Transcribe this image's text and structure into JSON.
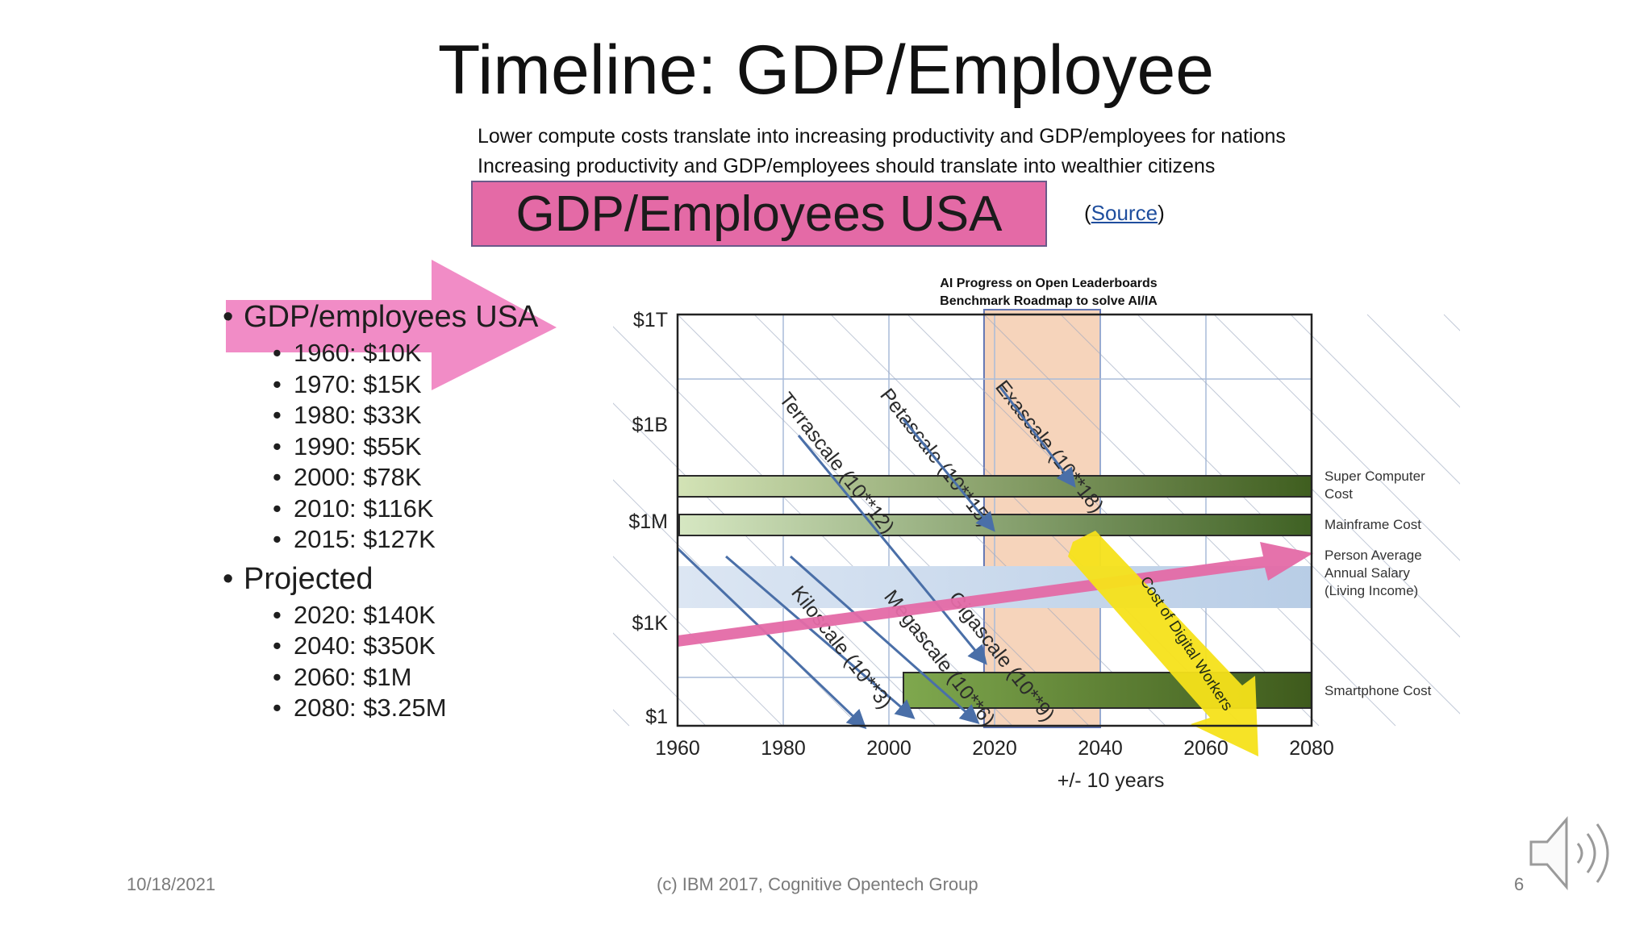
{
  "slide": {
    "title": "Timeline: GDP/Employee",
    "subtitle_1": "Lower compute costs translate into increasing productivity and GDP/employees for nations",
    "subtitle_2": "Increasing productivity and GDP/employees should translate into wealthier citizens",
    "banner": "GDP/Employees USA",
    "source_open": "(",
    "source_link": "Source",
    "source_close": ")"
  },
  "bullets": {
    "heading_1": "GDP/employees USA",
    "items_1": [
      "1960: $10K",
      "1970: $15K",
      "1980: $33K",
      "1990: $55K",
      "2000: $78K",
      "2010: $116K",
      "2015: $127K"
    ],
    "heading_2": "Projected",
    "items_2": [
      "2020: $140K",
      "2040: $350K",
      "2060:  $1M",
      "2080: $3.25M"
    ]
  },
  "footer": {
    "date": "10/18/2021",
    "center": "(c) IBM 2017, Cognitive Opentech Group",
    "page": "6"
  },
  "chart_data": {
    "type": "diagram",
    "title_lines": [
      "AI Progress on Open Leaderboards",
      "Benchmark Roadmap to solve AI/IA"
    ],
    "x_ticks": [
      "1960",
      "1980",
      "2000",
      "2020",
      "2040",
      "2060",
      "2080"
    ],
    "xlim": [
      1960,
      2080
    ],
    "y_ticks": [
      "$1T",
      "$1B",
      "$1M",
      "$1K",
      "$1"
    ],
    "xlabel": "+/- 10 years",
    "highlight_band": [
      2018,
      2040
    ],
    "bands": [
      {
        "label": "Super Computer Cost",
        "color_start": "#d3e3b6",
        "color_end": "#3f5e1f"
      },
      {
        "label": "Mainframe Cost",
        "color_start": "#d6e7c2",
        "color_end": "#3f6123"
      },
      {
        "label": "Person Average Annual Salary (Living Income)",
        "color_start": "#dce6f3",
        "color_end": "#b8cde6"
      },
      {
        "label": "Smartphone Cost",
        "color_start": "#7fa84e",
        "color_end": "#3e5a1c"
      }
    ],
    "diagonals": [
      {
        "label": "Terrascale (10**12)"
      },
      {
        "label": "Petascale (10**15)"
      },
      {
        "label": "Exascale (10**18)"
      },
      {
        "label": "Kiloscale (10**3)"
      },
      {
        "label": "Megascale (10**6)"
      },
      {
        "label": "Gigascale (10**9)"
      }
    ],
    "arrows": {
      "digital_workers": "Cost of Digital Workers"
    },
    "colors": {
      "highlight": "#f6d2b8",
      "pink": "#e46aa6",
      "yellow": "#f6e21a",
      "diag": "#4a6fa8"
    }
  }
}
